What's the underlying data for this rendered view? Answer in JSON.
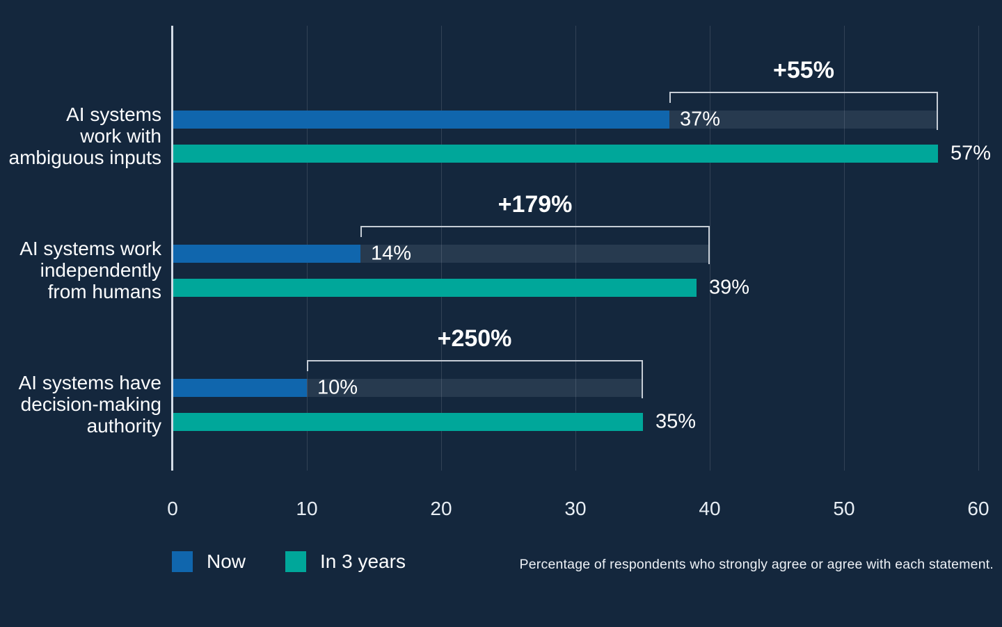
{
  "chart_data": {
    "type": "bar",
    "orientation": "horizontal",
    "title": "",
    "xlabel": "",
    "ylabel": "",
    "xlim": [
      0,
      60
    ],
    "x_ticks": [
      0,
      10,
      20,
      30,
      40,
      50,
      60
    ],
    "grid": "vertical gridlines every 10, faint; bright axis line at 0",
    "legend_position": "bottom-left",
    "categories": [
      "AI systems work with ambiguous inputs",
      "AI systems work independently from humans",
      "AI systems have decision-making authority"
    ],
    "series": [
      {
        "name": "Now",
        "color": "#1066AD",
        "values": [
          37,
          14,
          10
        ]
      },
      {
        "name": "In 3 years",
        "color": "#00A79A",
        "values": [
          57,
          39,
          35
        ]
      }
    ],
    "rows": [
      {
        "label_lines": [
          "AI systems",
          "work with",
          "ambiguous inputs"
        ],
        "now": 37,
        "now_label": "37%",
        "future": 57,
        "future_label": "57%",
        "change_label": "+55%",
        "bracket_end": 57
      },
      {
        "label_lines": [
          "AI systems work",
          "independently",
          "from humans"
        ],
        "now": 14,
        "now_label": "14%",
        "future": 39,
        "future_label": "39%",
        "change_label": "+179%",
        "bracket_end": 40
      },
      {
        "label_lines": [
          "AI systems have",
          "decision-making",
          "authority"
        ],
        "now": 10,
        "now_label": "10%",
        "future": 35,
        "future_label": "35%",
        "change_label": "+250%",
        "bracket_end": 35
      }
    ],
    "footnote": "Percentage of respondents who strongly agree or agree with each statement."
  },
  "legend": {
    "now": "Now",
    "future": "In 3 years"
  },
  "colors": {
    "background": "#14273D",
    "now": "#1066AD",
    "future": "#00A79A",
    "ghost": "rgba(213,230,248,0.10)",
    "bracket": "#C6CDD6",
    "axis_line": "#D3DCE6",
    "gridline": "rgba(255,255,255,0.13)"
  }
}
